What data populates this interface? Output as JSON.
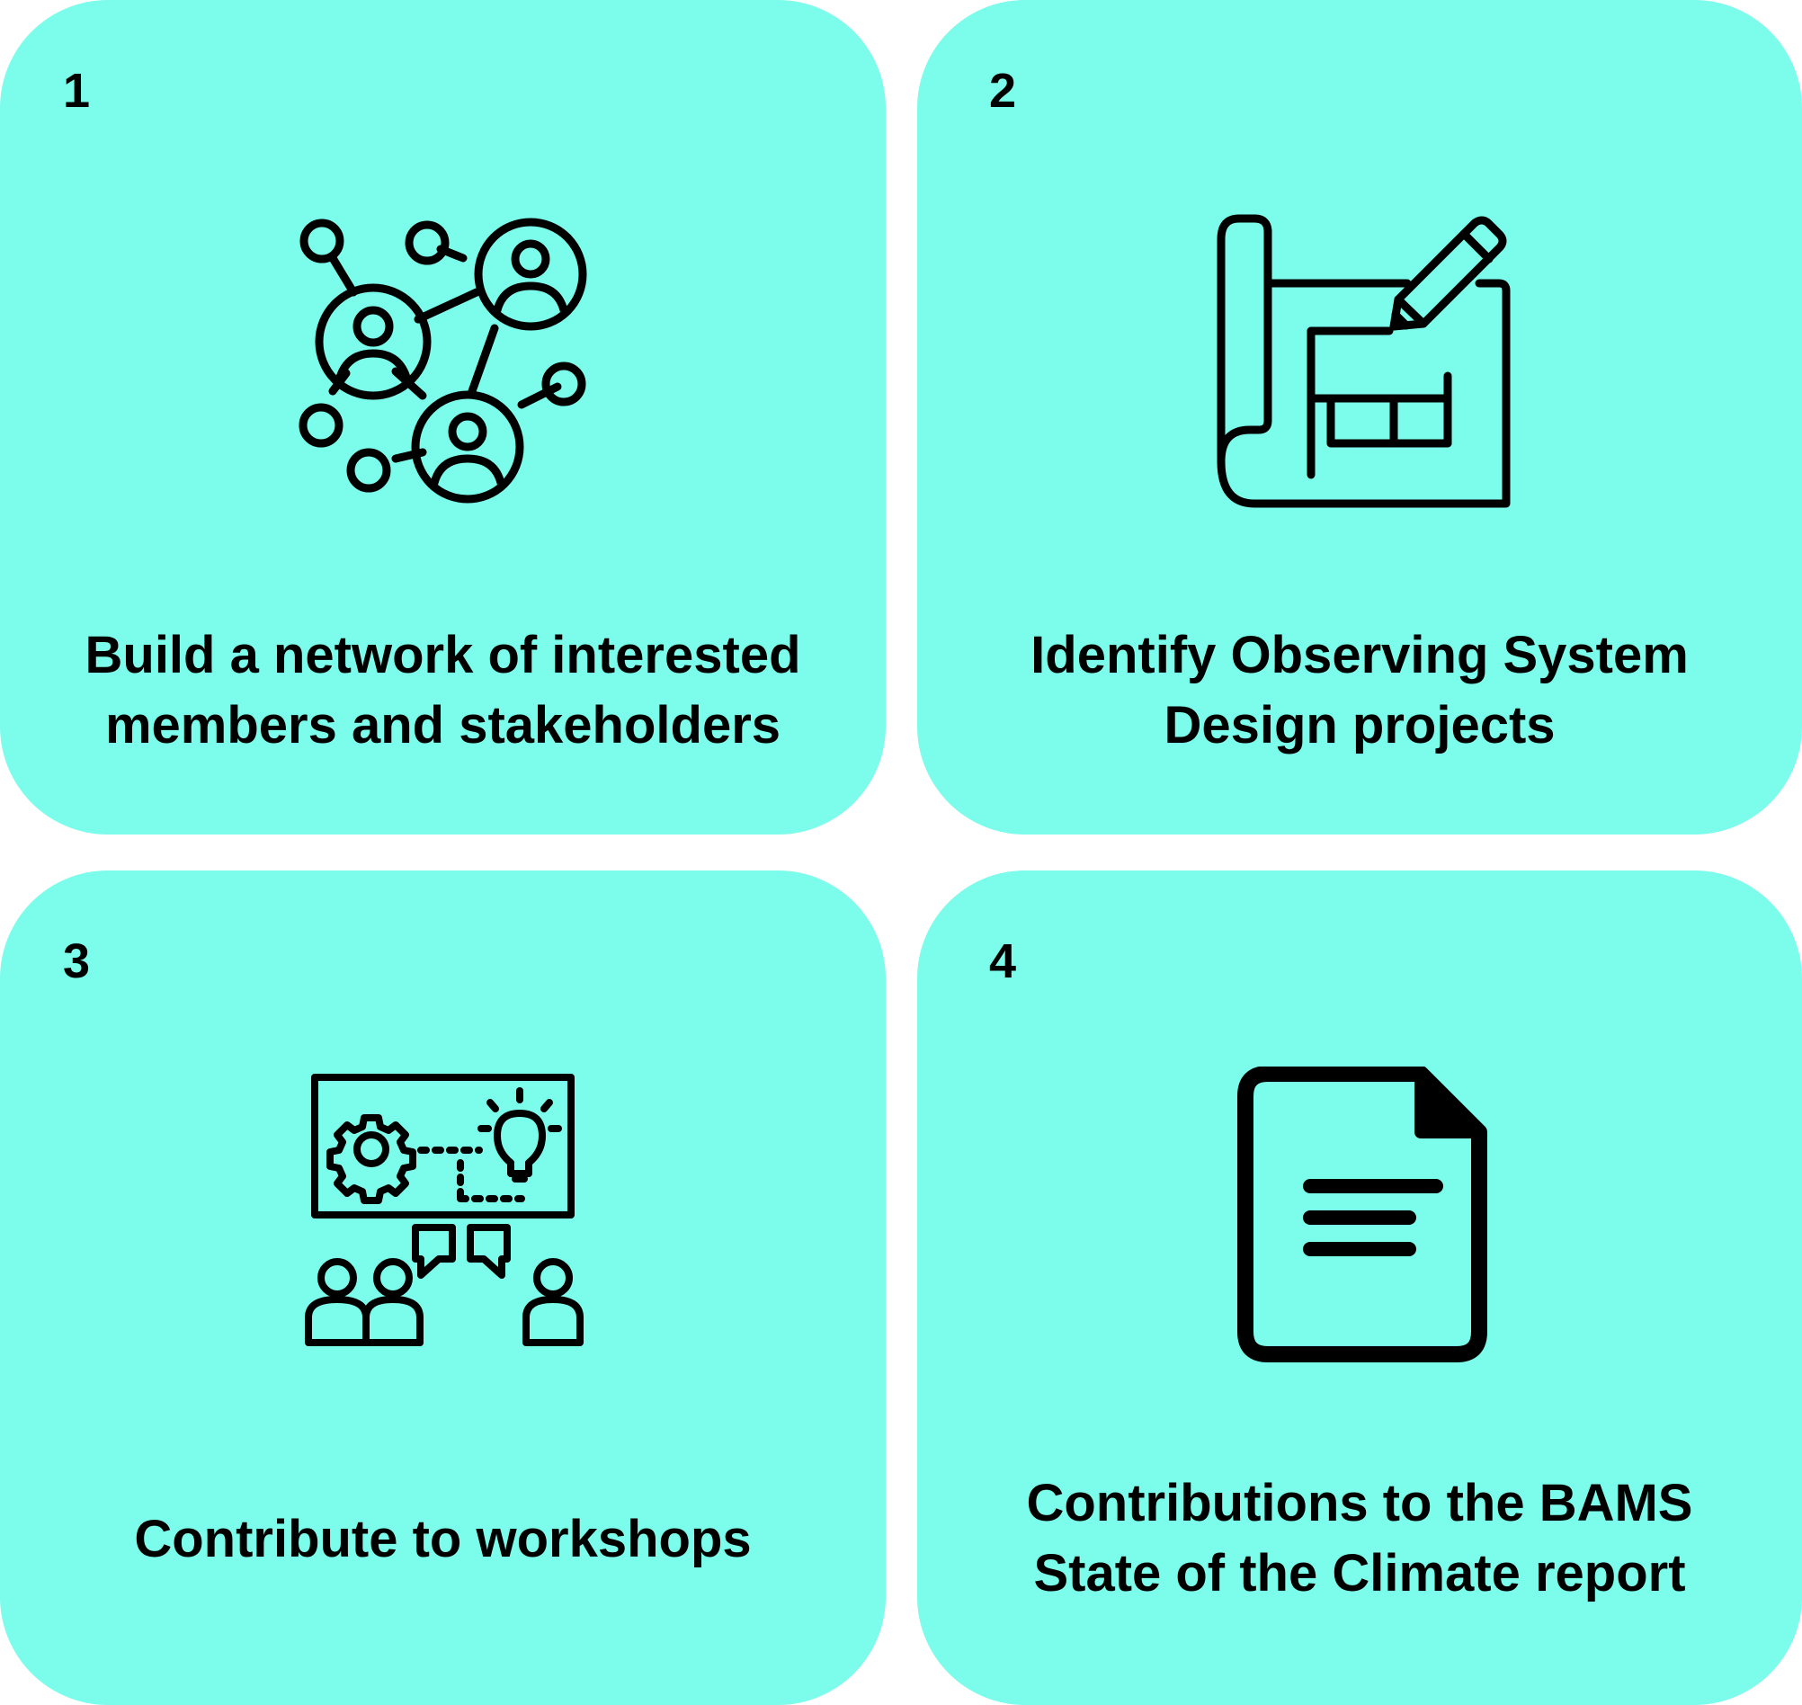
{
  "cards": [
    {
      "number": "1",
      "icon": "network-people-icon",
      "lines": [
        "Build a network of interested",
        "members and stakeholders"
      ]
    },
    {
      "number": "2",
      "icon": "blueprint-pencil-icon",
      "lines": [
        "Identify Observing System",
        "Design projects"
      ]
    },
    {
      "number": "3",
      "icon": "workshop-presentation-icon",
      "lines": [
        "Contribute to workshops"
      ]
    },
    {
      "number": "4",
      "icon": "document-icon",
      "lines": [
        "Contributions to the BAMS",
        "State of the Climate report"
      ]
    }
  ],
  "colors": {
    "card_background": "#7cfcea",
    "text": "#000000"
  }
}
